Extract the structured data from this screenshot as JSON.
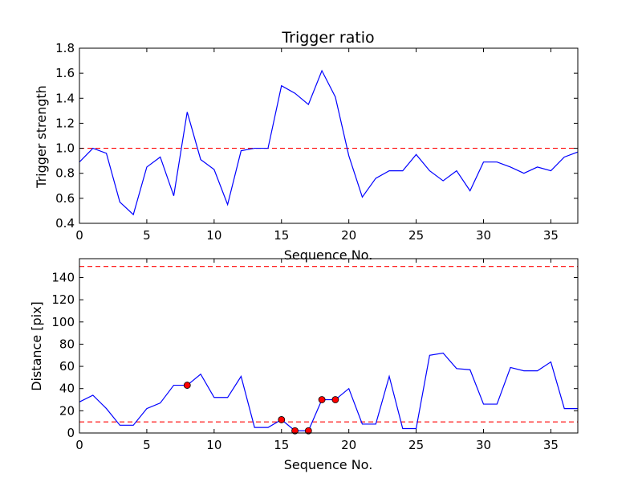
{
  "chart_data": [
    {
      "type": "line",
      "title": "Trigger ratio",
      "xlabel": "Sequence No.",
      "ylabel": "Trigger strength",
      "xlim": [
        0,
        37
      ],
      "ylim": [
        0.4,
        1.8
      ],
      "xticks": [
        0,
        5,
        10,
        15,
        20,
        25,
        30,
        35
      ],
      "yticks": [
        0.4,
        0.6,
        0.8,
        1.0,
        1.2,
        1.4,
        1.6,
        1.8
      ],
      "ytick_labels": [
        "0.4",
        "0.6",
        "0.8",
        "1.0",
        "1.2",
        "1.4",
        "1.6",
        "1.8"
      ],
      "grid": false,
      "series": [
        {
          "color": "#0000ff",
          "x": [
            0,
            1,
            2,
            3,
            4,
            5,
            6,
            7,
            8,
            9,
            10,
            11,
            12,
            13,
            14,
            15,
            16,
            17,
            18,
            19,
            20,
            21,
            22,
            23,
            24,
            25,
            26,
            27,
            28,
            29,
            30,
            31,
            32,
            33,
            34,
            35,
            36,
            37
          ],
          "y": [
            0.89,
            1.0,
            0.96,
            0.57,
            0.47,
            0.85,
            0.93,
            0.62,
            1.29,
            0.91,
            0.83,
            0.55,
            0.98,
            1.0,
            1.0,
            1.5,
            1.44,
            1.35,
            1.62,
            1.41,
            0.94,
            0.61,
            0.76,
            0.82,
            0.82,
            0.95,
            0.82,
            0.74,
            0.82,
            0.66,
            0.89,
            0.89,
            0.85,
            0.8,
            0.85,
            0.82,
            0.93,
            0.97
          ]
        }
      ],
      "reference_lines": [
        {
          "y": 1.0,
          "color": "#ff0000",
          "style": "dashed"
        }
      ]
    },
    {
      "type": "line",
      "title": "",
      "xlabel": "Sequence No.",
      "ylabel": "Distance [pix]",
      "xlim": [
        0,
        37
      ],
      "ylim": [
        0,
        157
      ],
      "xticks": [
        0,
        5,
        10,
        15,
        20,
        25,
        30,
        35
      ],
      "yticks": [
        0,
        20,
        40,
        60,
        80,
        100,
        120,
        140
      ],
      "ytick_labels": [
        "0",
        "20",
        "40",
        "60",
        "80",
        "100",
        "120",
        "140"
      ],
      "grid": false,
      "series": [
        {
          "color": "#0000ff",
          "x": [
            0,
            1,
            2,
            3,
            4,
            5,
            6,
            7,
            8,
            9,
            10,
            11,
            12,
            13,
            14,
            15,
            16,
            17,
            18,
            19,
            20,
            21,
            22,
            23,
            24,
            25,
            26,
            27,
            28,
            29,
            30,
            31,
            32,
            33,
            34,
            35,
            36,
            37
          ],
          "y": [
            28,
            34,
            22,
            7,
            7,
            22,
            27,
            43,
            43,
            53,
            32,
            32,
            51,
            5,
            5,
            12,
            2,
            2,
            30,
            30,
            40,
            8,
            8,
            51,
            4,
            4,
            70,
            72,
            58,
            57,
            26,
            26,
            59,
            56,
            56,
            64,
            22,
            22
          ]
        }
      ],
      "markers": {
        "color": "#ff0000",
        "x": [
          8,
          15,
          16,
          17,
          18,
          19
        ],
        "y": [
          43,
          12,
          2,
          2,
          30,
          30
        ]
      },
      "reference_lines": [
        {
          "y": 150,
          "color": "#ff0000",
          "style": "dashed"
        },
        {
          "y": 10,
          "color": "#ff0000",
          "style": "dashed"
        }
      ]
    }
  ]
}
